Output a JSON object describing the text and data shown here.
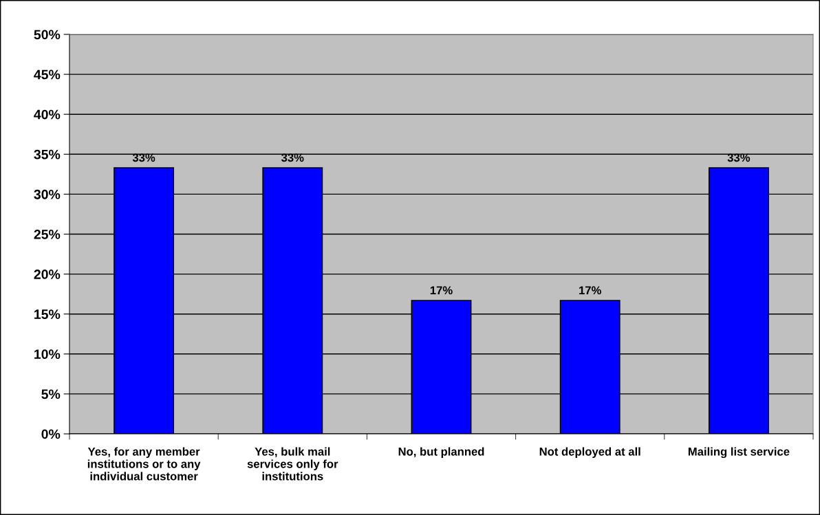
{
  "chart_data": {
    "type": "bar",
    "categories": [
      "Yes, for any member\ninstitutions or to any\nindividual customer",
      "Yes, bulk mail\nservices only for\ninstitutions",
      "No, but planned",
      "Not deployed at all",
      "Mailing list service"
    ],
    "values": [
      33.3,
      33.3,
      16.7,
      16.7,
      33.3
    ],
    "value_labels": [
      "33%",
      "33%",
      "17%",
      "17%",
      "33%"
    ],
    "color": "#0000ff",
    "ylim": [
      0,
      50
    ],
    "yticks": [
      {
        "value": 0,
        "label": "0%"
      },
      {
        "value": 5,
        "label": "5%"
      },
      {
        "value": 10,
        "label": "10%"
      },
      {
        "value": 15,
        "label": "15%"
      },
      {
        "value": 20,
        "label": "20%"
      },
      {
        "value": 25,
        "label": "25%"
      },
      {
        "value": 30,
        "label": "30%"
      },
      {
        "value": 35,
        "label": "35%"
      },
      {
        "value": 40,
        "label": "40%"
      },
      {
        "value": 45,
        "label": "45%"
      },
      {
        "value": 50,
        "label": "50%"
      }
    ],
    "grid": "y"
  }
}
